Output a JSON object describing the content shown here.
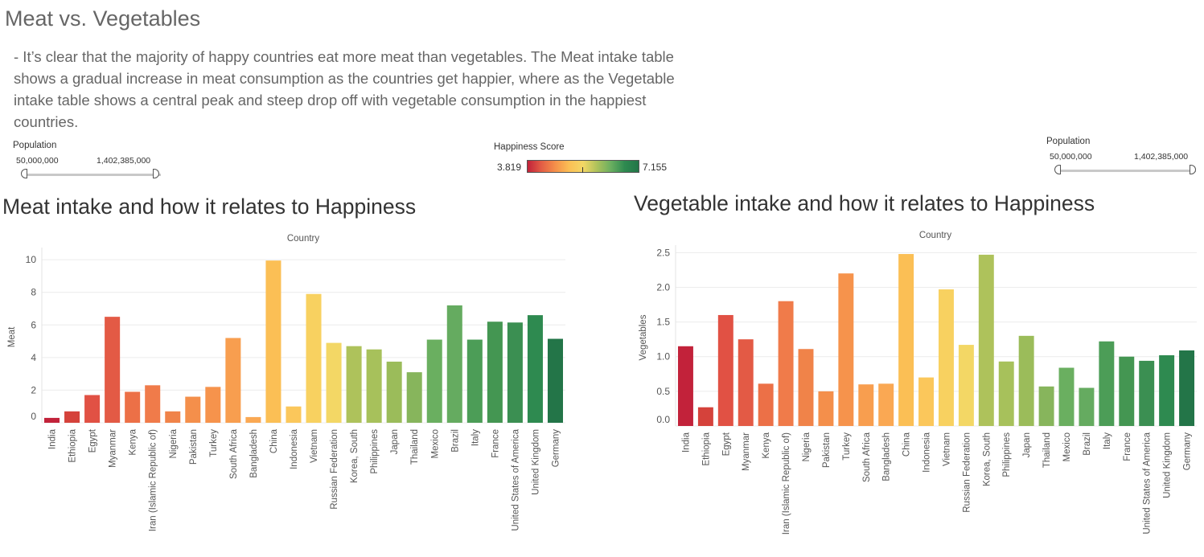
{
  "title": "Meat vs. Vegetables",
  "description": "- It’s clear that the majority of happy countries eat more meat than vegetables. The Meat intake table shows a gradual increase in meat consumption as the countries get happier, where as the Vegetable intake table shows a central peak and steep drop off with vegetable consumption in the happiest countries.",
  "filters": {
    "left": {
      "title": "Population",
      "min": "50,000,000",
      "max": "1,402,385,000"
    },
    "right": {
      "title": "Population",
      "min": "50,000,000",
      "max": "1,402,385,000"
    }
  },
  "legend": {
    "title": "Happiness Score",
    "min": "3.819",
    "max": "7.155",
    "colors": [
      "#c2223a",
      "#e35d45",
      "#f5904a",
      "#fbbf55",
      "#f3d765",
      "#aec25b",
      "#6aaf60",
      "#2e8a50",
      "#237548"
    ]
  },
  "chart_data": [
    {
      "type": "bar",
      "title": "Meat intake and how it relates to Happiness",
      "xlabel": "Country",
      "ylabel": "Meat",
      "ylim": [
        0,
        10.5
      ],
      "ticks": [
        "0",
        "2",
        "4",
        "6",
        "8",
        "10"
      ],
      "categories": [
        "India",
        "Ethiopia",
        "Egypt",
        "Myanmar",
        "Kenya",
        "Iran (Islamic Republic of)",
        "Nigeria",
        "Pakistan",
        "Turkey",
        "South Africa",
        "Bangladesh",
        "China",
        "Indonesia",
        "Vietnam",
        "Russian Federation",
        "Korea, South",
        "Philippines",
        "Japan",
        "Thailand",
        "Mexico",
        "Brazil",
        "Italy",
        "France",
        "United States of America",
        "United Kingdom",
        "Germany"
      ],
      "values": [
        0.3,
        0.7,
        1.7,
        6.5,
        1.9,
        2.3,
        0.7,
        1.6,
        2.2,
        5.2,
        0.35,
        9.95,
        1.0,
        7.9,
        4.9,
        4.7,
        4.5,
        3.75,
        3.1,
        5.1,
        7.2,
        5.1,
        6.2,
        6.15,
        6.6,
        5.15
      ],
      "colors": [
        "#c2223a",
        "#d5423b",
        "#e15144",
        "#e35a45",
        "#ec7047",
        "#f07b4a",
        "#f08349",
        "#f48f4b",
        "#f6934c",
        "#f89e4f",
        "#faa853",
        "#fbbf55",
        "#fbc75b",
        "#f8d160",
        "#f3d765",
        "#aec25b",
        "#a7c15b",
        "#9bbc5a",
        "#87b55c",
        "#6aaf60",
        "#65ab60",
        "#4c9d57",
        "#449652",
        "#3b8f52",
        "#2e8a50",
        "#237548"
      ]
    },
    {
      "type": "bar",
      "title": "Vegetable intake and how it relates to Happiness",
      "xlabel": "Country",
      "ylabel": "Vegetables",
      "ylim": [
        0,
        2.55
      ],
      "ticks": [
        "0.0",
        "0.5",
        "1.0",
        "1.5",
        "2.0",
        "2.5"
      ],
      "categories": [
        "India",
        "Ethiopia",
        "Egypt",
        "Myanmar",
        "Kenya",
        "Iran (Islamic Republic of)",
        "Nigeria",
        "Pakistan",
        "Turkey",
        "South Africa",
        "Bangladesh",
        "China",
        "Indonesia",
        "Vietnam",
        "Russian Federation",
        "Korea, South",
        "Philippines",
        "Japan",
        "Thailand",
        "Mexico",
        "Brazil",
        "Italy",
        "France",
        "United States of America",
        "United Kingdom",
        "Germany"
      ],
      "values": [
        1.15,
        0.27,
        1.6,
        1.25,
        0.61,
        1.8,
        1.11,
        0.5,
        2.2,
        0.6,
        0.61,
        2.48,
        0.7,
        1.97,
        1.17,
        2.47,
        0.93,
        1.3,
        0.57,
        0.84,
        0.55,
        1.22,
        1.0,
        0.94,
        1.02,
        1.09
      ],
      "colors": [
        "#c2223a",
        "#d5423b",
        "#e15144",
        "#e35a45",
        "#ec7047",
        "#f07b4a",
        "#f08349",
        "#f48f4b",
        "#f6934c",
        "#f89e4f",
        "#faa853",
        "#fbbf55",
        "#fbc75b",
        "#f8d160",
        "#f3d765",
        "#aec25b",
        "#a7c15b",
        "#9bbc5a",
        "#87b55c",
        "#6aaf60",
        "#65ab60",
        "#4c9d57",
        "#449652",
        "#3b8f52",
        "#2e8a50",
        "#237548"
      ]
    }
  ]
}
